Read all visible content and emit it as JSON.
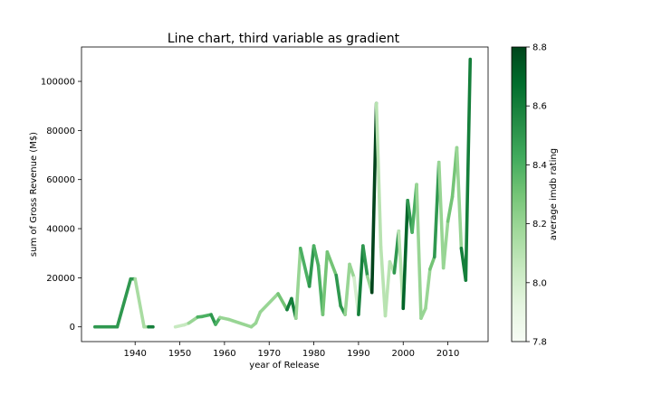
{
  "chart_data": {
    "type": "line",
    "title": "Line chart, third variable as gradient",
    "xlabel": "year of Release",
    "ylabel": "sum of Gross Revenue (M$)",
    "xlim": [
      1928,
      2019
    ],
    "ylim": [
      -6000,
      114000
    ],
    "x_ticks": [
      1940,
      1950,
      1960,
      1970,
      1980,
      1990,
      2000,
      2010
    ],
    "y_ticks": [
      0,
      20000,
      40000,
      60000,
      80000,
      100000
    ],
    "colorbar": {
      "label": "average imdb rating",
      "min": 7.8,
      "max": 8.8,
      "ticks": [
        7.8,
        8.0,
        8.2,
        8.4,
        8.6,
        8.8
      ],
      "colormap": "Greens",
      "colors": [
        "#f7fcf5",
        "#e5f5e0",
        "#c7e9c0",
        "#a1d99b",
        "#74c476",
        "#41ab5d",
        "#238b45",
        "#006d2c",
        "#00441b"
      ]
    },
    "segments": [
      [
        [
          1931,
          0,
          8.5
        ],
        [
          1936,
          0,
          8.5
        ],
        [
          1939,
          19500,
          8.5
        ],
        [
          1940,
          19500,
          8.15
        ],
        [
          1942,
          0,
          8.15
        ],
        [
          1943,
          0,
          8.6
        ],
        [
          1944,
          0,
          8.6
        ]
      ],
      [
        [
          1949,
          0,
          8.05
        ],
        [
          1951,
          800,
          8.05
        ],
        [
          1952,
          1500,
          8.2
        ],
        [
          1954,
          4000,
          8.4
        ],
        [
          1955,
          4200,
          8.4
        ],
        [
          1957,
          5000,
          8.5
        ],
        [
          1958,
          1000,
          8.4
        ],
        [
          1959,
          3800,
          8.2
        ],
        [
          1961,
          3000,
          8.2
        ],
        [
          1966,
          0,
          8.2
        ],
        [
          1967,
          1500,
          8.8
        ]
      ],
      [
        [
          1967,
          1500,
          8.2
        ],
        [
          1968,
          6000,
          8.2
        ],
        [
          1972,
          13500,
          8.3
        ],
        [
          1974,
          7000,
          8.6
        ],
        [
          1975,
          11500,
          8.6
        ],
        [
          1976,
          3500,
          8.2
        ],
        [
          1977,
          32000,
          8.4
        ],
        [
          1979,
          16500,
          8.5
        ],
        [
          1980,
          33000,
          8.4
        ],
        [
          1981,
          25000,
          8.4
        ],
        [
          1982,
          5000,
          8.3
        ],
        [
          1983,
          30500,
          8.3
        ],
        [
          1985,
          21000,
          8.5
        ],
        [
          1986,
          8500,
          8.5
        ],
        [
          1987,
          5000,
          8.2
        ],
        [
          1988,
          25500,
          8.2
        ],
        [
          1989,
          20000,
          8.0
        ],
        [
          1990,
          5000,
          8.6
        ],
        [
          1991,
          33000,
          8.5
        ],
        [
          1992,
          20500,
          8.2
        ],
        [
          1993,
          14000,
          8.8
        ],
        [
          1994,
          91000,
          8.1
        ],
        [
          1995,
          32500,
          8.1
        ],
        [
          1996,
          4500,
          8.1
        ],
        [
          1997,
          26500,
          8.1
        ],
        [
          1998,
          22000,
          8.5
        ],
        [
          1999,
          39000,
          8.1
        ],
        [
          2000,
          7500,
          8.7
        ],
        [
          2001,
          51500,
          8.5
        ],
        [
          2002,
          38500,
          8.4
        ],
        [
          2003,
          58000,
          8.2
        ],
        [
          2004,
          3500,
          8.2
        ],
        [
          2005,
          7500,
          8.2
        ],
        [
          2006,
          23500,
          8.3
        ],
        [
          2007,
          28500,
          8.5
        ],
        [
          2008,
          67000,
          8.2
        ],
        [
          2009,
          24000,
          8.2
        ],
        [
          2010,
          43000,
          8.3
        ],
        [
          2011,
          53000,
          8.3
        ],
        [
          2012,
          73000,
          8.2
        ],
        [
          2013,
          32000,
          8.6
        ],
        [
          2014,
          19000,
          8.6
        ],
        [
          2015,
          109000,
          8.6
        ]
      ]
    ]
  }
}
